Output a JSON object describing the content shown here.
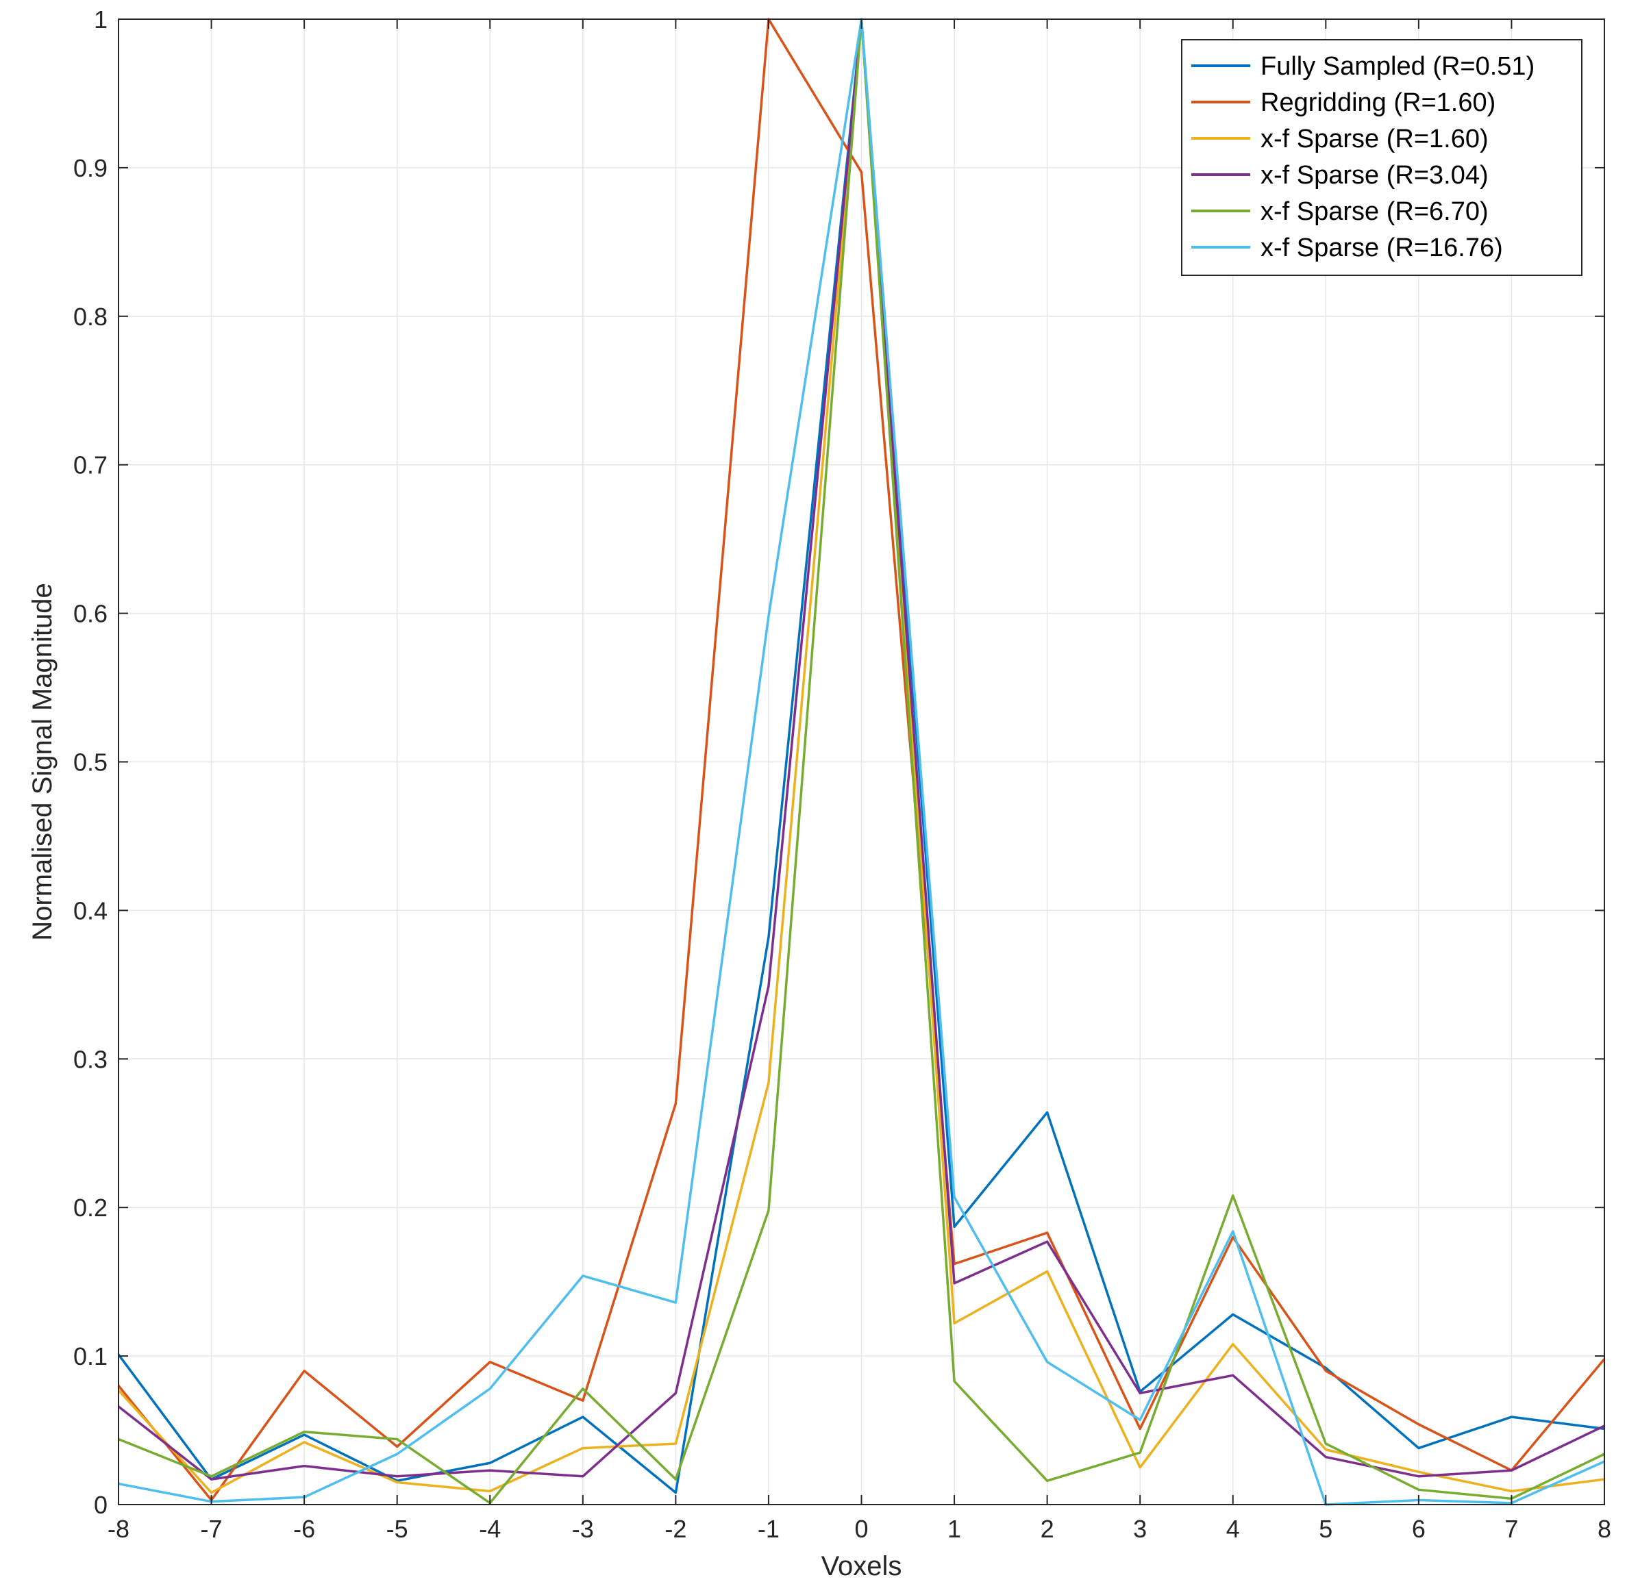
{
  "chart_data": {
    "type": "line",
    "title": "",
    "xlabel": "Voxels",
    "ylabel": "Normalised Signal Magnitude",
    "x": [
      -8,
      -7,
      -6,
      -5,
      -4,
      -3,
      -2,
      -1,
      0,
      1,
      2,
      3,
      4,
      5,
      6,
      7,
      8
    ],
    "xlim": [
      -8,
      8
    ],
    "ylim": [
      0,
      1
    ],
    "xticks": [
      "-8",
      "-7",
      "-6",
      "-5",
      "-4",
      "-3",
      "-2",
      "-1",
      "0",
      "1",
      "2",
      "3",
      "4",
      "5",
      "6",
      "7",
      "8"
    ],
    "yticks": [
      "0",
      "0.1",
      "0.2",
      "0.3",
      "0.4",
      "0.5",
      "0.6",
      "0.7",
      "0.8",
      "0.9",
      "1"
    ],
    "grid": true,
    "legend_position": "top-right",
    "series": [
      {
        "name": "Fully Sampled (R=0.51)",
        "color": "#0072BD",
        "values": [
          0.101,
          0.017,
          0.047,
          0.016,
          0.028,
          0.059,
          0.008,
          0.382,
          1.0,
          0.187,
          0.264,
          0.076,
          0.128,
          0.092,
          0.038,
          0.059,
          0.051
        ]
      },
      {
        "name": "Regridding (R=1.60)",
        "color": "#D95319",
        "values": [
          0.08,
          0.003,
          0.09,
          0.039,
          0.096,
          0.07,
          0.27,
          1.0,
          0.897,
          0.162,
          0.183,
          0.051,
          0.18,
          0.09,
          0.054,
          0.023,
          0.098
        ]
      },
      {
        "name": "x-f Sparse (R=1.60)",
        "color": "#EDB120",
        "values": [
          0.077,
          0.008,
          0.042,
          0.015,
          0.009,
          0.038,
          0.041,
          0.284,
          1.0,
          0.122,
          0.157,
          0.025,
          0.108,
          0.037,
          0.022,
          0.009,
          0.017
        ]
      },
      {
        "name": "x-f Sparse (R=3.04)",
        "color": "#7E2F8E",
        "values": [
          0.066,
          0.017,
          0.026,
          0.019,
          0.023,
          0.019,
          0.075,
          0.349,
          1.0,
          0.149,
          0.177,
          0.075,
          0.087,
          0.032,
          0.019,
          0.023,
          0.053
        ]
      },
      {
        "name": "x-f Sparse (R=6.70)",
        "color": "#77AC30",
        "values": [
          0.044,
          0.019,
          0.049,
          0.044,
          0.001,
          0.078,
          0.017,
          0.198,
          1.0,
          0.083,
          0.016,
          0.035,
          0.208,
          0.041,
          0.01,
          0.004,
          0.034
        ]
      },
      {
        "name": "x-f Sparse (R=16.76)",
        "color": "#4DBEEE",
        "values": [
          0.014,
          0.002,
          0.005,
          0.034,
          0.078,
          0.154,
          0.136,
          0.598,
          1.0,
          0.207,
          0.096,
          0.057,
          0.184,
          0.0,
          0.003,
          0.001,
          0.029
        ]
      }
    ]
  }
}
